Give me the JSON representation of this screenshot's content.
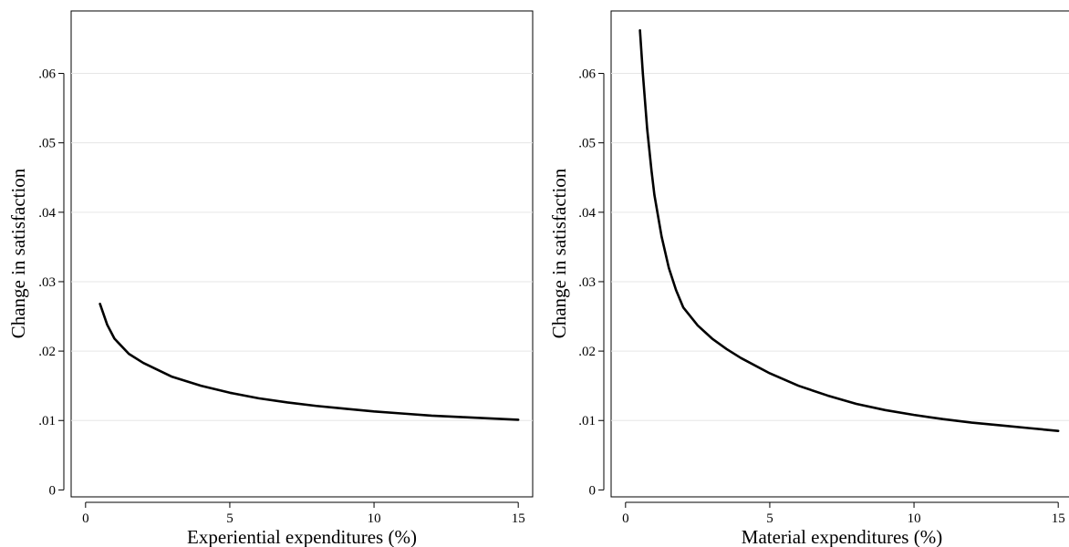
{
  "chart_data": [
    {
      "type": "line",
      "title": "",
      "xlabel": "Experiential expenditures (%)",
      "ylabel": "Change in satisfaction",
      "xlim": [
        -0.5,
        15.5
      ],
      "ylim": [
        -0.001,
        0.069
      ],
      "xticks": [
        0,
        5,
        10,
        15
      ],
      "xtick_labels": [
        "0",
        "5",
        "10",
        "15"
      ],
      "yticks": [
        0,
        0.01,
        0.02,
        0.03,
        0.04,
        0.05,
        0.06
      ],
      "ytick_labels": [
        "0",
        ".01",
        ".02",
        ".03",
        ".04",
        ".05",
        ".06"
      ],
      "grid": "horizontal",
      "legend": "none",
      "series": [
        {
          "color": "#000000",
          "x": [
            0.5,
            0.75,
            1,
            1.5,
            2,
            3,
            4,
            5,
            6,
            7,
            8,
            9,
            10,
            11,
            12,
            13,
            14,
            15
          ],
          "y": [
            0.0268,
            0.0238,
            0.0218,
            0.0196,
            0.0183,
            0.0163,
            0.015,
            0.014,
            0.0132,
            0.0126,
            0.0121,
            0.0117,
            0.0113,
            0.011,
            0.0107,
            0.0105,
            0.0103,
            0.0101
          ]
        }
      ]
    },
    {
      "type": "line",
      "title": "",
      "xlabel": "Material expenditures (%)",
      "ylabel": "Change in satisfaction",
      "xlim": [
        -0.5,
        15.5
      ],
      "ylim": [
        -0.001,
        0.069
      ],
      "xticks": [
        0,
        5,
        10,
        15
      ],
      "xtick_labels": [
        "0",
        "5",
        "10",
        "15"
      ],
      "yticks": [
        0,
        0.01,
        0.02,
        0.03,
        0.04,
        0.05,
        0.06
      ],
      "ytick_labels": [
        "0",
        ".01",
        ".02",
        ".03",
        ".04",
        ".05",
        ".06"
      ],
      "grid": "horizontal",
      "legend": "none",
      "series": [
        {
          "color": "#000000",
          "x": [
            0.5,
            0.6,
            0.75,
            0.9,
            1,
            1.25,
            1.5,
            1.75,
            2,
            2.5,
            3,
            3.5,
            4,
            5,
            6,
            7,
            8,
            9,
            10,
            11,
            12,
            13,
            14,
            15
          ],
          "y": [
            0.0662,
            0.06,
            0.052,
            0.046,
            0.0425,
            0.0365,
            0.032,
            0.0288,
            0.0263,
            0.0237,
            0.0218,
            0.0203,
            0.019,
            0.0168,
            0.015,
            0.0136,
            0.0124,
            0.0115,
            0.0108,
            0.0102,
            0.0097,
            0.0093,
            0.0089,
            0.0085
          ]
        }
      ]
    }
  ]
}
